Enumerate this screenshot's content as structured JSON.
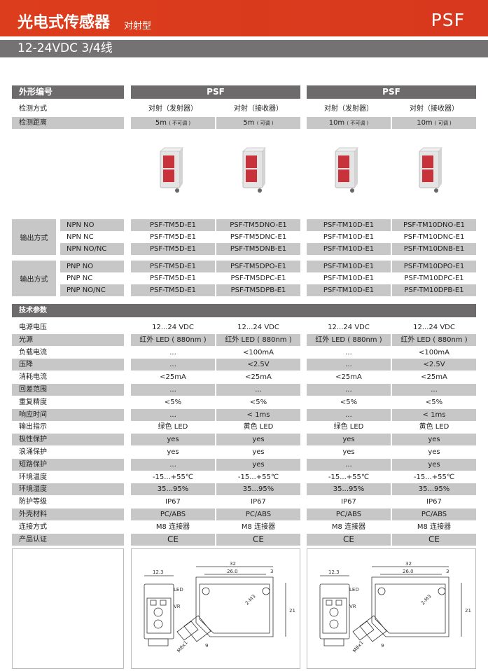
{
  "header": {
    "title": "光电式传感器",
    "subtitle": "对射型",
    "model": "PSF",
    "band": "12-24VDC 3/4线"
  },
  "table": {
    "shape_label": "外形编号",
    "groups": [
      "PSF",
      "PSF"
    ],
    "method_label": "检测方式",
    "methods": [
      "对射（发射器）",
      "对射（接收器）",
      "对射（发射器）",
      "对射（接收器）"
    ],
    "distance_label": "检测距离",
    "distances": [
      {
        "v": "5m",
        "n": "( 不可调 )"
      },
      {
        "v": "5m",
        "n": "( 可调 )"
      },
      {
        "v": "10m",
        "n": "( 不可调 )"
      },
      {
        "v": "10m",
        "n": "( 可调 )"
      }
    ],
    "output_label": "输出方式",
    "npn": [
      {
        "type": "NPN NO",
        "models": [
          "PSF-TM5D-E1",
          "PSF-TM5DNO-E1",
          "PSF-TM10D-E1",
          "PSF-TM10DNO-E1"
        ]
      },
      {
        "type": "NPN NC",
        "models": [
          "PSF-TM5D-E1",
          "PSF-TM5DNC-E1",
          "PSF-TM10D-E1",
          "PSF-TM10DNC-E1"
        ]
      },
      {
        "type": "NPN NO/NC",
        "models": [
          "PSF-TM5D-E1",
          "PSF-TM5DNB-E1",
          "PSF-TM10D-E1",
          "PSF-TM10DNB-E1"
        ]
      }
    ],
    "pnp": [
      {
        "type": "PNP NO",
        "models": [
          "PSF-TM5D-E1",
          "PSF-TM5DPO-E1",
          "PSF-TM10D-E1",
          "PSF-TM10DPO-E1"
        ]
      },
      {
        "type": "PNP NC",
        "models": [
          "PSF-TM5D-E1",
          "PSF-TM5DPC-E1",
          "PSF-TM10D-E1",
          "PSF-TM10DPC-E1"
        ]
      },
      {
        "type": "PNP NO/NC",
        "models": [
          "PSF-TM5D-E1",
          "PSF-TM5DPB-E1",
          "PSF-TM10D-E1",
          "PSF-TM10DPB-E1"
        ]
      }
    ]
  },
  "specs_title": "技术参数",
  "specs": [
    {
      "label": "电源电压",
      "v": [
        "12...24 VDC",
        "12...24 VDC",
        "12...24 VDC",
        "12...24 VDC"
      ]
    },
    {
      "label": "光源",
      "v": [
        "红外 LED ( 880nm )",
        "红外 LED ( 880nm )",
        "红外 LED ( 880nm )",
        "红外 LED ( 880nm )"
      ]
    },
    {
      "label": "负载电流",
      "v": [
        "...",
        "<100mA",
        "...",
        "<100mA"
      ]
    },
    {
      "label": "压降",
      "v": [
        "...",
        "<2.5V",
        "...",
        "<2.5V"
      ]
    },
    {
      "label": "消耗电流",
      "v": [
        "<25mA",
        "<25mA",
        "<25mA",
        "<25mA"
      ]
    },
    {
      "label": "回差范围",
      "v": [
        "...",
        "...",
        "...",
        "..."
      ]
    },
    {
      "label": "重复精度",
      "v": [
        "<5%",
        "<5%",
        "<5%",
        "<5%"
      ]
    },
    {
      "label": "响应时间",
      "v": [
        "...",
        "< 1ms",
        "...",
        "< 1ms"
      ]
    },
    {
      "label": "输出指示",
      "v": [
        "绿色 LED",
        "黄色 LED",
        "绿色 LED",
        "黄色 LED"
      ]
    },
    {
      "label": "极性保护",
      "v": [
        "yes",
        "yes",
        "yes",
        "yes"
      ]
    },
    {
      "label": "浪涌保护",
      "v": [
        "yes",
        "yes",
        "yes",
        "yes"
      ]
    },
    {
      "label": "短路保护",
      "v": [
        "...",
        "yes",
        "...",
        "yes"
      ]
    },
    {
      "label": "环境温度",
      "v": [
        "-15...+55℃",
        "-15...+55℃",
        "-15...+55℃",
        "-15...+55℃"
      ]
    },
    {
      "label": "环境湿度",
      "v": [
        "35...95%",
        "35...95%",
        "35...95%",
        "35...95%"
      ]
    },
    {
      "label": "防护等级",
      "v": [
        "IP67",
        "IP67",
        "IP67",
        "IP67"
      ]
    },
    {
      "label": "外壳材料",
      "v": [
        "PC/ABS",
        "PC/ABS",
        "PC/ABS",
        "PC/ABS"
      ]
    },
    {
      "label": "连接方式",
      "v": [
        "M8  连接器",
        "M8  连接器",
        "M8  连接器",
        "M8  连接器"
      ]
    },
    {
      "label": "产品认证",
      "v": [
        "CE",
        "CE",
        "CE",
        "CE"
      ]
    }
  ],
  "drawing": {
    "w": "12.3",
    "l": "32",
    "hole": "26.0",
    "e": "3",
    "h": "21",
    "screw": "2-M3",
    "led": "LED",
    "vr": "VR",
    "thread": "M8x1",
    "d": "9"
  }
}
